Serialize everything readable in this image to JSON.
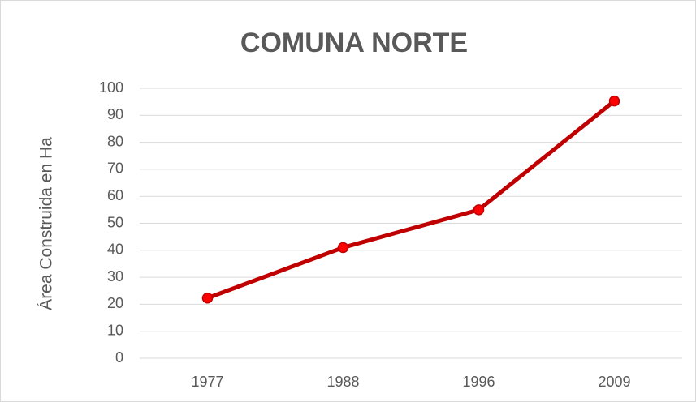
{
  "chart_data": {
    "type": "line",
    "title": "COMUNA NORTE",
    "y_label": "Área Construida en Ha",
    "categories": [
      "1977",
      "1988",
      "1996",
      "2009"
    ],
    "values": [
      22.3,
      41,
      55,
      95.3
    ],
    "color": "#c00000",
    "marker_color": "#ff0000",
    "ylim": [
      0,
      100
    ],
    "yticks": [
      0,
      10,
      20,
      30,
      40,
      50,
      60,
      70,
      80,
      90,
      100
    ],
    "grid": true
  }
}
